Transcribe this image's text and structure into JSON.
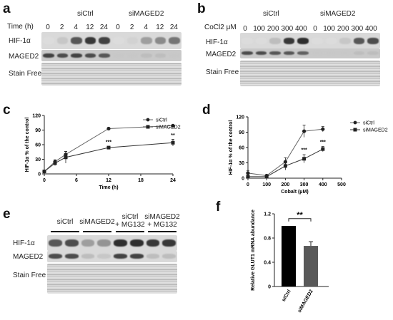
{
  "panels": {
    "a": {
      "letter": "a",
      "time_label": "Time (h)",
      "groups": [
        "siCtrl",
        "siMAGED2"
      ],
      "times": [
        "0",
        "2",
        "4",
        "12",
        "24",
        "0",
        "2",
        "4",
        "12",
        "24"
      ],
      "rows": [
        "HIF-1α",
        "MAGED2",
        "Stain Free"
      ]
    },
    "b": {
      "letter": "b",
      "conc_label": "CoCl2 μM",
      "groups": [
        "siCtrl",
        "siMAGED2"
      ],
      "concs": [
        "0",
        "100",
        "200",
        "300",
        "400",
        "0",
        "100",
        "200",
        "300",
        "400"
      ],
      "rows": [
        "HIF-1α",
        "MAGED2",
        "Stain Free"
      ]
    },
    "c": {
      "letter": "c"
    },
    "d": {
      "letter": "d"
    },
    "e": {
      "letter": "e",
      "groups": [
        "siCtrl",
        "siMAGED2",
        "siCtrl\n+ MG132",
        "siMAGED2\n+ MG132"
      ],
      "groups_line1": [
        "siCtrl",
        "siMAGED2",
        "siCtrl",
        "siMAGED2"
      ],
      "groups_line2": [
        "",
        "",
        "+ MG132",
        "+ MG132"
      ],
      "rows": [
        "HIF-1α",
        "MAGED2",
        "Stain Free"
      ]
    },
    "f": {
      "letter": "f"
    }
  },
  "chart_data": [
    {
      "id": "c",
      "type": "line",
      "xlabel": "Time (h)",
      "ylabel": "HIF-1α % of the control",
      "xlim": [
        0,
        24
      ],
      "ylim": [
        0,
        120
      ],
      "xticks": [
        0,
        6,
        12,
        18,
        24
      ],
      "yticks": [
        0,
        30,
        60,
        90,
        120
      ],
      "legend_position": "top-right",
      "series": [
        {
          "name": "siCtrl",
          "marker": "circle",
          "x": [
            0,
            2,
            4,
            12,
            24
          ],
          "y": [
            5,
            25,
            40,
            93,
            99
          ],
          "err": [
            2,
            4,
            6,
            2,
            1
          ]
        },
        {
          "name": "siMAGED2",
          "marker": "square",
          "x": [
            0,
            2,
            4,
            12,
            24
          ],
          "y": [
            5,
            22,
            34,
            54,
            64
          ],
          "err": [
            2,
            5,
            12,
            2,
            7
          ]
        }
      ],
      "annotations": [
        {
          "x": 12,
          "y": 62,
          "text": "***"
        },
        {
          "x": 24,
          "y": 76,
          "text": "**"
        }
      ]
    },
    {
      "id": "d",
      "type": "line",
      "xlabel": "Cobalt (μM)",
      "ylabel": "HIF-1α % of the control",
      "xlim": [
        0,
        500
      ],
      "ylim": [
        0,
        120
      ],
      "xticks": [
        0,
        100,
        200,
        300,
        400,
        500
      ],
      "yticks": [
        0,
        30,
        60,
        90,
        120
      ],
      "legend_position": "top-right",
      "series": [
        {
          "name": "siCtrl",
          "marker": "circle",
          "x": [
            0,
            100,
            200,
            300,
            400
          ],
          "y": [
            10,
            5,
            32,
            92,
            96
          ],
          "err": [
            5,
            2,
            8,
            12,
            5
          ]
        },
        {
          "name": "siMAGED2",
          "marker": "square",
          "x": [
            0,
            100,
            200,
            300,
            400
          ],
          "y": [
            3,
            3,
            24,
            38,
            57
          ],
          "err": [
            2,
            2,
            8,
            8,
            5
          ]
        }
      ],
      "annotations": [
        {
          "x": 300,
          "y": 52,
          "text": "***"
        },
        {
          "x": 400,
          "y": 68,
          "text": "***"
        }
      ]
    },
    {
      "id": "f",
      "type": "bar",
      "categories": [
        "siCtrl",
        "siMAGED2"
      ],
      "values": [
        1.0,
        0.67
      ],
      "err": [
        0,
        0.07
      ],
      "colors": [
        "#000000",
        "#595959"
      ],
      "ylabel": "Relative GLUT1 mRNA abundance",
      "ylim": [
        0,
        1.2
      ],
      "yticks": [
        0,
        0.4,
        0.8,
        1.2
      ],
      "significance": "**"
    }
  ]
}
